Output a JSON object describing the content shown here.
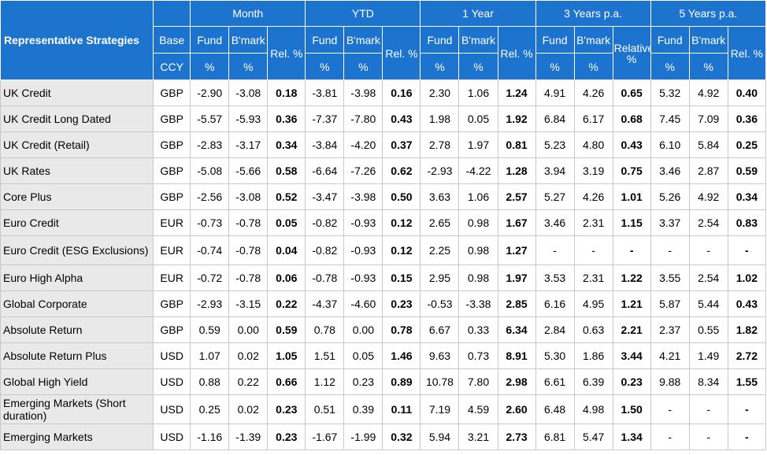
{
  "header": {
    "strategy_label": "Representative Strategies",
    "base_label": "Base",
    "ccy_label": "CCY",
    "groups": [
      {
        "label": "Month",
        "fund": "Fund",
        "bmark": "B'mark",
        "rel": "Rel. %",
        "fund_unit": "%",
        "bmark_unit": "%"
      },
      {
        "label": "YTD",
        "fund": "Fund",
        "bmark": "B'mark",
        "rel": "Rel. %",
        "fund_unit": "%",
        "bmark_unit": "%"
      },
      {
        "label": "1 Year",
        "fund": "Fund",
        "bmark": "B'mark",
        "rel": "Rel. %",
        "fund_unit": "%",
        "bmark_unit": "%"
      },
      {
        "label": "3 Years p.a.",
        "fund": "Fund",
        "bmark": "B'mark",
        "rel": "Relative %",
        "fund_unit": "%",
        "bmark_unit": "%"
      },
      {
        "label": "5 Years p.a.",
        "fund": "Fund",
        "bmark": "B'mark",
        "rel": "Rel. %",
        "fund_unit": "%",
        "bmark_unit": "%"
      }
    ]
  },
  "rows": [
    {
      "name": "UK Credit",
      "ccy": "GBP",
      "v": [
        "-2.90",
        "-3.08",
        "0.18",
        "-3.81",
        "-3.98",
        "0.16",
        "2.30",
        "1.06",
        "1.24",
        "4.91",
        "4.26",
        "0.65",
        "5.32",
        "4.92",
        "0.40"
      ]
    },
    {
      "name": "UK Credit Long Dated",
      "ccy": "GBP",
      "v": [
        "-5.57",
        "-5.93",
        "0.36",
        "-7.37",
        "-7.80",
        "0.43",
        "1.98",
        "0.05",
        "1.92",
        "6.84",
        "6.17",
        "0.68",
        "7.45",
        "7.09",
        "0.36"
      ]
    },
    {
      "name": "UK Credit (Retail)",
      "ccy": "GBP",
      "v": [
        "-2.83",
        "-3.17",
        "0.34",
        "-3.84",
        "-4.20",
        "0.37",
        "2.78",
        "1.97",
        "0.81",
        "5.23",
        "4.80",
        "0.43",
        "6.10",
        "5.84",
        "0.25"
      ]
    },
    {
      "name": "UK Rates",
      "ccy": "GBP",
      "v": [
        "-5.08",
        "-5.66",
        "0.58",
        "-6.64",
        "-7.26",
        "0.62",
        "-2.93",
        "-4.22",
        "1.28",
        "3.94",
        "3.19",
        "0.75",
        "3.46",
        "2.87",
        "0.59"
      ]
    },
    {
      "name": "Core Plus",
      "ccy": "GBP",
      "v": [
        "-2.56",
        "-3.08",
        "0.52",
        "-3.47",
        "-3.98",
        "0.50",
        "3.63",
        "1.06",
        "2.57",
        "5.27",
        "4.26",
        "1.01",
        "5.26",
        "4.92",
        "0.34"
      ]
    },
    {
      "name": "Euro Credit",
      "ccy": "EUR",
      "v": [
        "-0.73",
        "-0.78",
        "0.05",
        "-0.82",
        "-0.93",
        "0.12",
        "2.65",
        "0.98",
        "1.67",
        "3.46",
        "2.31",
        "1.15",
        "3.37",
        "2.54",
        "0.83"
      ]
    },
    {
      "name": "Euro Credit (ESG Exclusions)",
      "ccy": "EUR",
      "v": [
        "-0.74",
        "-0.78",
        "0.04",
        "-0.82",
        "-0.93",
        "0.12",
        "2.25",
        "0.98",
        "1.27",
        "-",
        "-",
        "-",
        "-",
        "-",
        "-"
      ]
    },
    {
      "name": "Euro High Alpha",
      "ccy": "EUR",
      "v": [
        "-0.72",
        "-0.78",
        "0.06",
        "-0.78",
        "-0.93",
        "0.15",
        "2.95",
        "0.98",
        "1.97",
        "3.53",
        "2.31",
        "1.22",
        "3.55",
        "2.54",
        "1.02"
      ]
    },
    {
      "name": "Global Corporate",
      "ccy": "GBP",
      "v": [
        "-2.93",
        "-3.15",
        "0.22",
        "-4.37",
        "-4.60",
        "0.23",
        "-0.53",
        "-3.38",
        "2.85",
        "6.16",
        "4.95",
        "1.21",
        "5.87",
        "5.44",
        "0.43"
      ]
    },
    {
      "name": "Absolute Return",
      "ccy": "GBP",
      "v": [
        "0.59",
        "0.00",
        "0.59",
        "0.78",
        "0.00",
        "0.78",
        "6.67",
        "0.33",
        "6.34",
        "2.84",
        "0.63",
        "2.21",
        "2.37",
        "0.55",
        "1.82"
      ]
    },
    {
      "name": "Absolute Return Plus",
      "ccy": "USD",
      "v": [
        "1.07",
        "0.02",
        "1.05",
        "1.51",
        "0.05",
        "1.46",
        "9.63",
        "0.73",
        "8.91",
        "5.30",
        "1.86",
        "3.44",
        "4.21",
        "1.49",
        "2.72"
      ]
    },
    {
      "name": "Global High Yield",
      "ccy": "USD",
      "v": [
        "0.88",
        "0.22",
        "0.66",
        "1.12",
        "0.23",
        "0.89",
        "10.78",
        "7.80",
        "2.98",
        "6.61",
        "6.39",
        "0.23",
        "9.88",
        "8.34",
        "1.55"
      ]
    },
    {
      "name": "Emerging Markets (Short duration)",
      "ccy": "USD",
      "v": [
        "0.25",
        "0.02",
        "0.23",
        "0.51",
        "0.39",
        "0.11",
        "7.19",
        "4.59",
        "2.60",
        "6.48",
        "4.98",
        "1.50",
        "-",
        "-",
        "-"
      ]
    },
    {
      "name": "Emerging Markets",
      "ccy": "USD",
      "v": [
        "-1.16",
        "-1.39",
        "0.23",
        "-1.67",
        "-1.99",
        "0.32",
        "5.94",
        "3.21",
        "2.73",
        "6.81",
        "5.47",
        "1.34",
        "-",
        "-",
        "-"
      ]
    }
  ]
}
